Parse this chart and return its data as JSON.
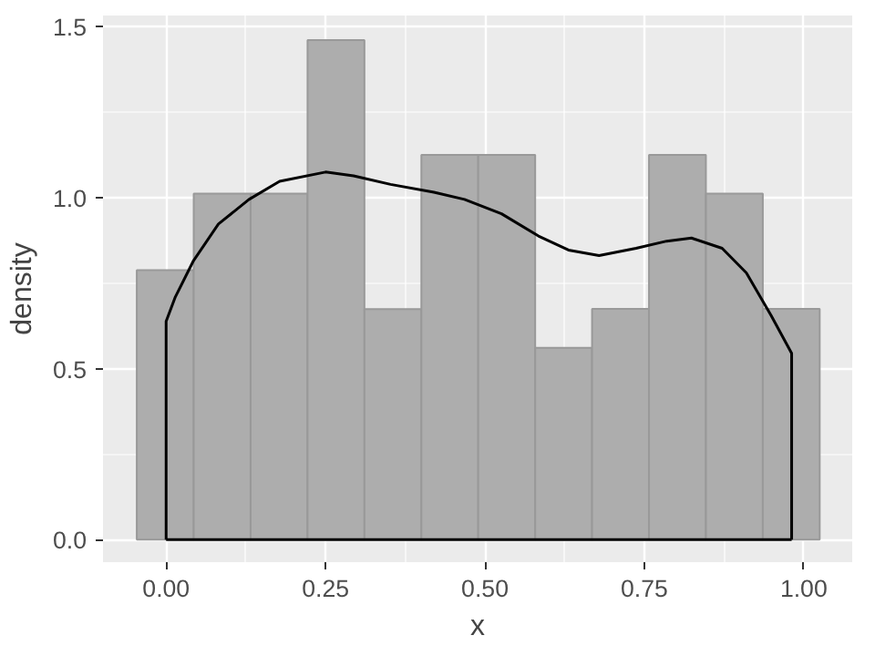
{
  "chart_data": {
    "type": "histogram",
    "xlabel": "x",
    "ylabel": "density",
    "bins": [
      -0.046,
      0.0433,
      0.1325,
      0.2218,
      0.311,
      0.4003,
      0.4895,
      0.5788,
      0.668,
      0.7573,
      0.8465,
      0.9358,
      1.025
    ],
    "values": [
      0.788,
      1.012,
      1.012,
      1.461,
      0.674,
      1.125,
      1.125,
      0.561,
      0.675,
      1.125,
      1.012,
      0.675
    ],
    "color": "#adadad",
    "series": [
      {
        "type": "line",
        "color": "#000000",
        "x": [
          0,
          0,
          0.0145,
          0.043,
          0.082,
          0.13,
          0.178,
          0.25,
          0.294,
          0.352,
          0.42,
          0.468,
          0.526,
          0.584,
          0.631,
          0.679,
          0.737,
          0.785,
          0.824,
          0.872,
          0.91,
          0.949,
          0.981,
          0.981
        ],
        "values": [
          0,
          0.638,
          0.71,
          0.816,
          0.923,
          0.995,
          1.048,
          1.075,
          1.064,
          1.039,
          1.016,
          0.995,
          0.953,
          0.888,
          0.847,
          0.831,
          0.852,
          0.873,
          0.882,
          0.852,
          0.78,
          0.655,
          0.545,
          0
        ]
      },
      {
        "type": "line",
        "color": "#000000",
        "x": [
          0,
          0.981
        ],
        "values": [
          0,
          0
        ]
      }
    ],
    "xlim": [
      -0.099,
      1.076
    ],
    "ylim": [
      -0.066,
      1.533
    ],
    "xticks": [
      {
        "value": 0,
        "label": "0.00"
      },
      0.25,
      {
        "value": 0.5,
        "label": "0.50"
      },
      0.75,
      {
        "value": 1,
        "label": "1.00"
      }
    ],
    "yticks": [
      {
        "value": 0,
        "label": "0.0"
      },
      0.5,
      {
        "value": 1,
        "label": "1.0"
      },
      1.5
    ],
    "grid": true
  }
}
